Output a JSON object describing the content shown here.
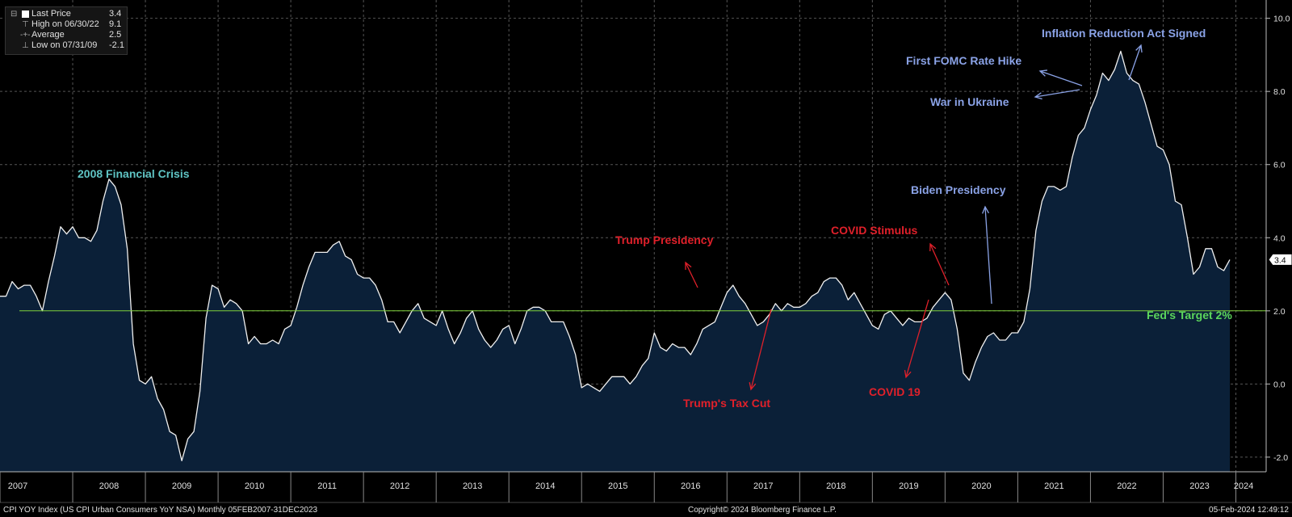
{
  "legend": {
    "items": [
      {
        "label": "Last Price",
        "value": "3.4",
        "mark": "swatch"
      },
      {
        "label": "High on 06/30/22",
        "value": "9.1",
        "mark": "high"
      },
      {
        "label": "Average",
        "value": "2.5",
        "mark": "avg"
      },
      {
        "label": "Low on 07/31/09",
        "value": "-2.1",
        "mark": "low"
      }
    ]
  },
  "footer": {
    "left": "CPI YOY Index (US CPI Urban Consumers YoY NSA)  Monthly 05FEB2007-31DEC2023",
    "center": "Copyright© 2024 Bloomberg Finance L.P.",
    "right": "05-Feb-2024 12:49:12"
  },
  "last_price_label": "3.4",
  "colors": {
    "background": "#000000",
    "area_fill": "#0b2038",
    "line": "#f0f0f0",
    "target_line": "#7fd23a",
    "grid": "#555555",
    "teal": "#5fc4c4",
    "blue": "#8aa2e6",
    "red": "#e0202a",
    "green": "#5cd65c"
  },
  "chart_data": {
    "type": "area",
    "title": "",
    "xlabel": "",
    "ylabel": "",
    "ylim": [
      -2.4,
      10.5
    ],
    "xlim": [
      "2007-01",
      "2024-06"
    ],
    "y_ticks": [
      -2.0,
      0.0,
      2.0,
      4.0,
      6.0,
      8.0,
      10.0
    ],
    "y_tick_labels": [
      "-2.0",
      "0.0",
      "2.0",
      "4.0",
      "6.0",
      "8.0",
      "10.0"
    ],
    "x_tick_labels": [
      "2007",
      "2008",
      "2009",
      "2010",
      "2011",
      "2012",
      "2013",
      "2014",
      "2015",
      "2016",
      "2017",
      "2018",
      "2019",
      "2020",
      "2021",
      "2022",
      "2023",
      "2024"
    ],
    "grid": true,
    "reference_line": {
      "value": 2.0,
      "label": "Fed's Target 2%"
    },
    "series": [
      {
        "values": [
          [
            "2007-01",
            2.4
          ],
          [
            "2007-02",
            2.4
          ],
          [
            "2007-03",
            2.8
          ],
          [
            "2007-04",
            2.6
          ],
          [
            "2007-05",
            2.7
          ],
          [
            "2007-06",
            2.7
          ],
          [
            "2007-07",
            2.4
          ],
          [
            "2007-08",
            2.0
          ],
          [
            "2007-09",
            2.8
          ],
          [
            "2007-10",
            3.5
          ],
          [
            "2007-11",
            4.3
          ],
          [
            "2007-12",
            4.1
          ],
          [
            "2008-01",
            4.3
          ],
          [
            "2008-02",
            4.0
          ],
          [
            "2008-03",
            4.0
          ],
          [
            "2008-04",
            3.9
          ],
          [
            "2008-05",
            4.2
          ],
          [
            "2008-06",
            5.0
          ],
          [
            "2008-07",
            5.6
          ],
          [
            "2008-08",
            5.4
          ],
          [
            "2008-09",
            4.9
          ],
          [
            "2008-10",
            3.7
          ],
          [
            "2008-11",
            1.1
          ],
          [
            "2008-12",
            0.1
          ],
          [
            "2009-01",
            0.0
          ],
          [
            "2009-02",
            0.2
          ],
          [
            "2009-03",
            -0.4
          ],
          [
            "2009-04",
            -0.7
          ],
          [
            "2009-05",
            -1.3
          ],
          [
            "2009-06",
            -1.4
          ],
          [
            "2009-07",
            -2.1
          ],
          [
            "2009-08",
            -1.5
          ],
          [
            "2009-09",
            -1.3
          ],
          [
            "2009-10",
            -0.2
          ],
          [
            "2009-11",
            1.8
          ],
          [
            "2009-12",
            2.7
          ],
          [
            "2010-01",
            2.6
          ],
          [
            "2010-02",
            2.1
          ],
          [
            "2010-03",
            2.3
          ],
          [
            "2010-04",
            2.2
          ],
          [
            "2010-05",
            2.0
          ],
          [
            "2010-06",
            1.1
          ],
          [
            "2010-07",
            1.3
          ],
          [
            "2010-08",
            1.1
          ],
          [
            "2010-09",
            1.1
          ],
          [
            "2010-10",
            1.2
          ],
          [
            "2010-11",
            1.1
          ],
          [
            "2010-12",
            1.5
          ],
          [
            "2011-01",
            1.6
          ],
          [
            "2011-02",
            2.1
          ],
          [
            "2011-03",
            2.7
          ],
          [
            "2011-04",
            3.2
          ],
          [
            "2011-05",
            3.6
          ],
          [
            "2011-06",
            3.6
          ],
          [
            "2011-07",
            3.6
          ],
          [
            "2011-08",
            3.8
          ],
          [
            "2011-09",
            3.9
          ],
          [
            "2011-10",
            3.5
          ],
          [
            "2011-11",
            3.4
          ],
          [
            "2011-12",
            3.0
          ],
          [
            "2012-01",
            2.9
          ],
          [
            "2012-02",
            2.9
          ],
          [
            "2012-03",
            2.7
          ],
          [
            "2012-04",
            2.3
          ],
          [
            "2012-05",
            1.7
          ],
          [
            "2012-06",
            1.7
          ],
          [
            "2012-07",
            1.4
          ],
          [
            "2012-08",
            1.7
          ],
          [
            "2012-09",
            2.0
          ],
          [
            "2012-10",
            2.2
          ],
          [
            "2012-11",
            1.8
          ],
          [
            "2012-12",
            1.7
          ],
          [
            "2013-01",
            1.6
          ],
          [
            "2013-02",
            2.0
          ],
          [
            "2013-03",
            1.5
          ],
          [
            "2013-04",
            1.1
          ],
          [
            "2013-05",
            1.4
          ],
          [
            "2013-06",
            1.8
          ],
          [
            "2013-07",
            2.0
          ],
          [
            "2013-08",
            1.5
          ],
          [
            "2013-09",
            1.2
          ],
          [
            "2013-10",
            1.0
          ],
          [
            "2013-11",
            1.2
          ],
          [
            "2013-12",
            1.5
          ],
          [
            "2014-01",
            1.6
          ],
          [
            "2014-02",
            1.1
          ],
          [
            "2014-03",
            1.5
          ],
          [
            "2014-04",
            2.0
          ],
          [
            "2014-05",
            2.1
          ],
          [
            "2014-06",
            2.1
          ],
          [
            "2014-07",
            2.0
          ],
          [
            "2014-08",
            1.7
          ],
          [
            "2014-09",
            1.7
          ],
          [
            "2014-10",
            1.7
          ],
          [
            "2014-11",
            1.3
          ],
          [
            "2014-12",
            0.8
          ],
          [
            "2015-01",
            -0.1
          ],
          [
            "2015-02",
            0.0
          ],
          [
            "2015-03",
            -0.1
          ],
          [
            "2015-04",
            -0.2
          ],
          [
            "2015-05",
            0.0
          ],
          [
            "2015-06",
            0.2
          ],
          [
            "2015-07",
            0.2
          ],
          [
            "2015-08",
            0.2
          ],
          [
            "2015-09",
            0.0
          ],
          [
            "2015-10",
            0.2
          ],
          [
            "2015-11",
            0.5
          ],
          [
            "2015-12",
            0.7
          ],
          [
            "2016-01",
            1.4
          ],
          [
            "2016-02",
            1.0
          ],
          [
            "2016-03",
            0.9
          ],
          [
            "2016-04",
            1.1
          ],
          [
            "2016-05",
            1.0
          ],
          [
            "2016-06",
            1.0
          ],
          [
            "2016-07",
            0.8
          ],
          [
            "2016-08",
            1.1
          ],
          [
            "2016-09",
            1.5
          ],
          [
            "2016-10",
            1.6
          ],
          [
            "2016-11",
            1.7
          ],
          [
            "2016-12",
            2.1
          ],
          [
            "2017-01",
            2.5
          ],
          [
            "2017-02",
            2.7
          ],
          [
            "2017-03",
            2.4
          ],
          [
            "2017-04",
            2.2
          ],
          [
            "2017-05",
            1.9
          ],
          [
            "2017-06",
            1.6
          ],
          [
            "2017-07",
            1.7
          ],
          [
            "2017-08",
            1.9
          ],
          [
            "2017-09",
            2.2
          ],
          [
            "2017-10",
            2.0
          ],
          [
            "2017-11",
            2.2
          ],
          [
            "2017-12",
            2.1
          ],
          [
            "2018-01",
            2.1
          ],
          [
            "2018-02",
            2.2
          ],
          [
            "2018-03",
            2.4
          ],
          [
            "2018-04",
            2.5
          ],
          [
            "2018-05",
            2.8
          ],
          [
            "2018-06",
            2.9
          ],
          [
            "2018-07",
            2.9
          ],
          [
            "2018-08",
            2.7
          ],
          [
            "2018-09",
            2.3
          ],
          [
            "2018-10",
            2.5
          ],
          [
            "2018-11",
            2.2
          ],
          [
            "2018-12",
            1.9
          ],
          [
            "2019-01",
            1.6
          ],
          [
            "2019-02",
            1.5
          ],
          [
            "2019-03",
            1.9
          ],
          [
            "2019-04",
            2.0
          ],
          [
            "2019-05",
            1.8
          ],
          [
            "2019-06",
            1.6
          ],
          [
            "2019-07",
            1.8
          ],
          [
            "2019-08",
            1.7
          ],
          [
            "2019-09",
            1.7
          ],
          [
            "2019-10",
            1.8
          ],
          [
            "2019-11",
            2.1
          ],
          [
            "2019-12",
            2.3
          ],
          [
            "2020-01",
            2.5
          ],
          [
            "2020-02",
            2.3
          ],
          [
            "2020-03",
            1.5
          ],
          [
            "2020-04",
            0.3
          ],
          [
            "2020-05",
            0.1
          ],
          [
            "2020-06",
            0.6
          ],
          [
            "2020-07",
            1.0
          ],
          [
            "2020-08",
            1.3
          ],
          [
            "2020-09",
            1.4
          ],
          [
            "2020-10",
            1.2
          ],
          [
            "2020-11",
            1.2
          ],
          [
            "2020-12",
            1.4
          ],
          [
            "2021-01",
            1.4
          ],
          [
            "2021-02",
            1.7
          ],
          [
            "2021-03",
            2.6
          ],
          [
            "2021-04",
            4.2
          ],
          [
            "2021-05",
            5.0
          ],
          [
            "2021-06",
            5.4
          ],
          [
            "2021-07",
            5.4
          ],
          [
            "2021-08",
            5.3
          ],
          [
            "2021-09",
            5.4
          ],
          [
            "2021-10",
            6.2
          ],
          [
            "2021-11",
            6.8
          ],
          [
            "2021-12",
            7.0
          ],
          [
            "2022-01",
            7.5
          ],
          [
            "2022-02",
            7.9
          ],
          [
            "2022-03",
            8.5
          ],
          [
            "2022-04",
            8.3
          ],
          [
            "2022-05",
            8.6
          ],
          [
            "2022-06",
            9.1
          ],
          [
            "2022-07",
            8.5
          ],
          [
            "2022-08",
            8.3
          ],
          [
            "2022-09",
            8.2
          ],
          [
            "2022-10",
            7.7
          ],
          [
            "2022-11",
            7.1
          ],
          [
            "2022-12",
            6.5
          ],
          [
            "2023-01",
            6.4
          ],
          [
            "2023-02",
            6.0
          ],
          [
            "2023-03",
            5.0
          ],
          [
            "2023-04",
            4.9
          ],
          [
            "2023-05",
            4.0
          ],
          [
            "2023-06",
            3.0
          ],
          [
            "2023-07",
            3.2
          ],
          [
            "2023-08",
            3.7
          ],
          [
            "2023-09",
            3.7
          ],
          [
            "2023-10",
            3.2
          ],
          [
            "2023-11",
            3.1
          ],
          [
            "2023-12",
            3.4
          ]
        ]
      }
    ],
    "annotations": [
      {
        "text": "2008 Financial Crisis",
        "color": "teal"
      },
      {
        "text": "Trump Presidency",
        "color": "red"
      },
      {
        "text": "Trump's Tax Cut",
        "color": "red"
      },
      {
        "text": "COVID Stimulus",
        "color": "red"
      },
      {
        "text": "COVID 19",
        "color": "red"
      },
      {
        "text": "Biden Presidency",
        "color": "blue"
      },
      {
        "text": "War in Ukraine",
        "color": "blue"
      },
      {
        "text": "First FOMC Rate Hike",
        "color": "blue"
      },
      {
        "text": "Inflation Reduction Act Signed",
        "color": "blue"
      },
      {
        "text": "Fed's Target 2%",
        "color": "green"
      }
    ]
  }
}
